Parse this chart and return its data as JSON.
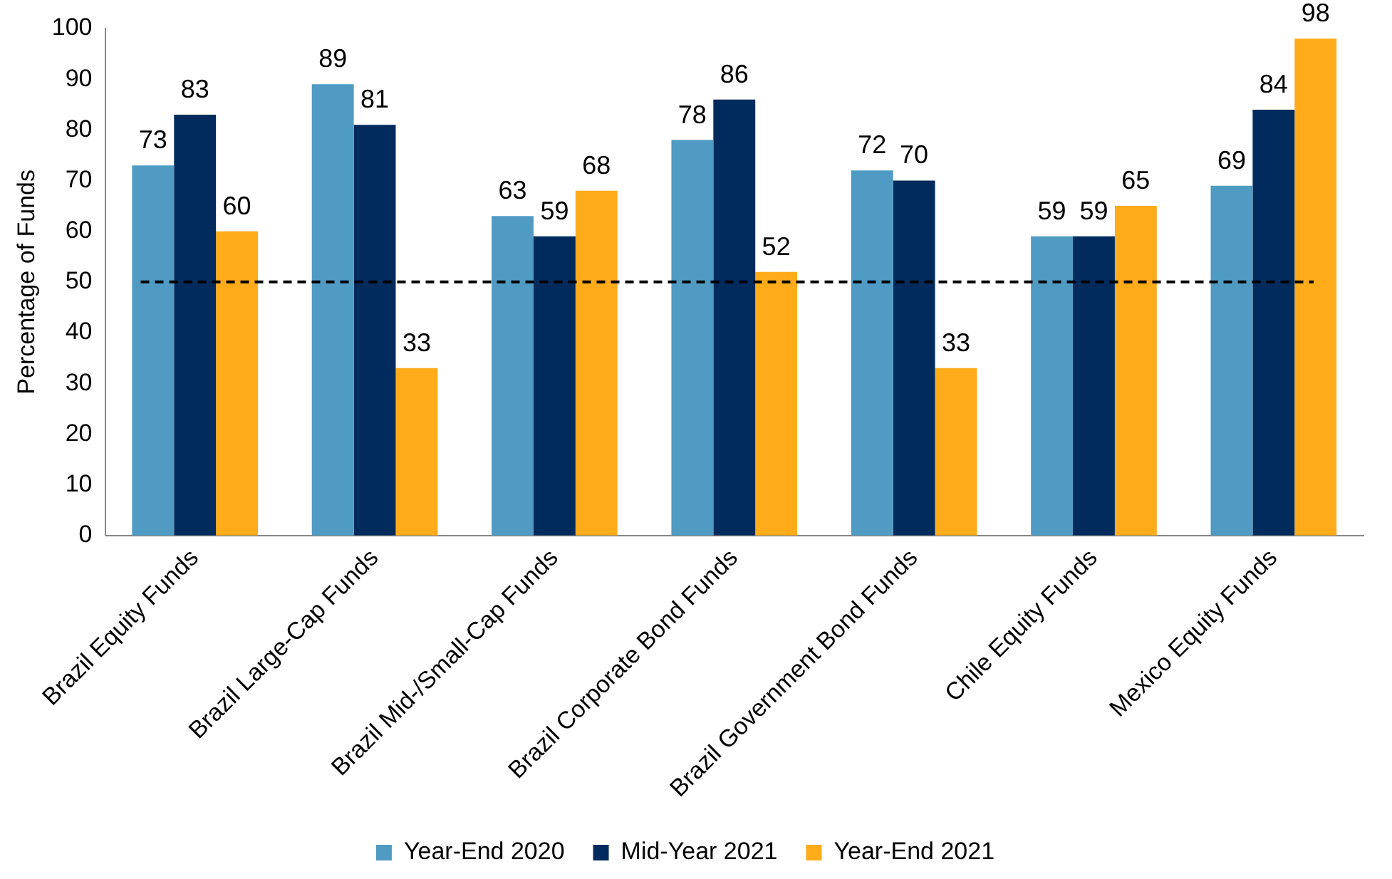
{
  "chart_data": {
    "type": "bar",
    "ylabel": "Percentage of Funds",
    "categories": [
      "Brazil Equity Funds",
      "Brazil Large-Cap Funds",
      "Brazil Mid-/Small-Cap Funds",
      "Brazil Corporate Bond Funds",
      "Brazil Government Bond Funds",
      "Chile Equity Funds",
      "Mexico Equity Funds"
    ],
    "series": [
      {
        "name": "Year-End 2020",
        "color": "#4f9bc4",
        "values": [
          73,
          89,
          63,
          78,
          72,
          59,
          69
        ]
      },
      {
        "name": "Mid-Year 2021",
        "color": "#002b5c",
        "values": [
          83,
          81,
          59,
          86,
          70,
          59,
          84
        ]
      },
      {
        "name": "Year-End 2021",
        "color": "#ffab1a",
        "values": [
          60,
          33,
          68,
          52,
          33,
          65,
          98
        ]
      }
    ],
    "ylim": [
      0,
      100
    ],
    "yticks": [
      0,
      10,
      20,
      30,
      40,
      50,
      60,
      70,
      80,
      90,
      100
    ],
    "ref_lines": [
      {
        "axis": "y",
        "value": 50,
        "color": "#000000",
        "line_style": "dashed"
      }
    ],
    "data_labels": true,
    "grid": false,
    "legend": "bottom"
  }
}
